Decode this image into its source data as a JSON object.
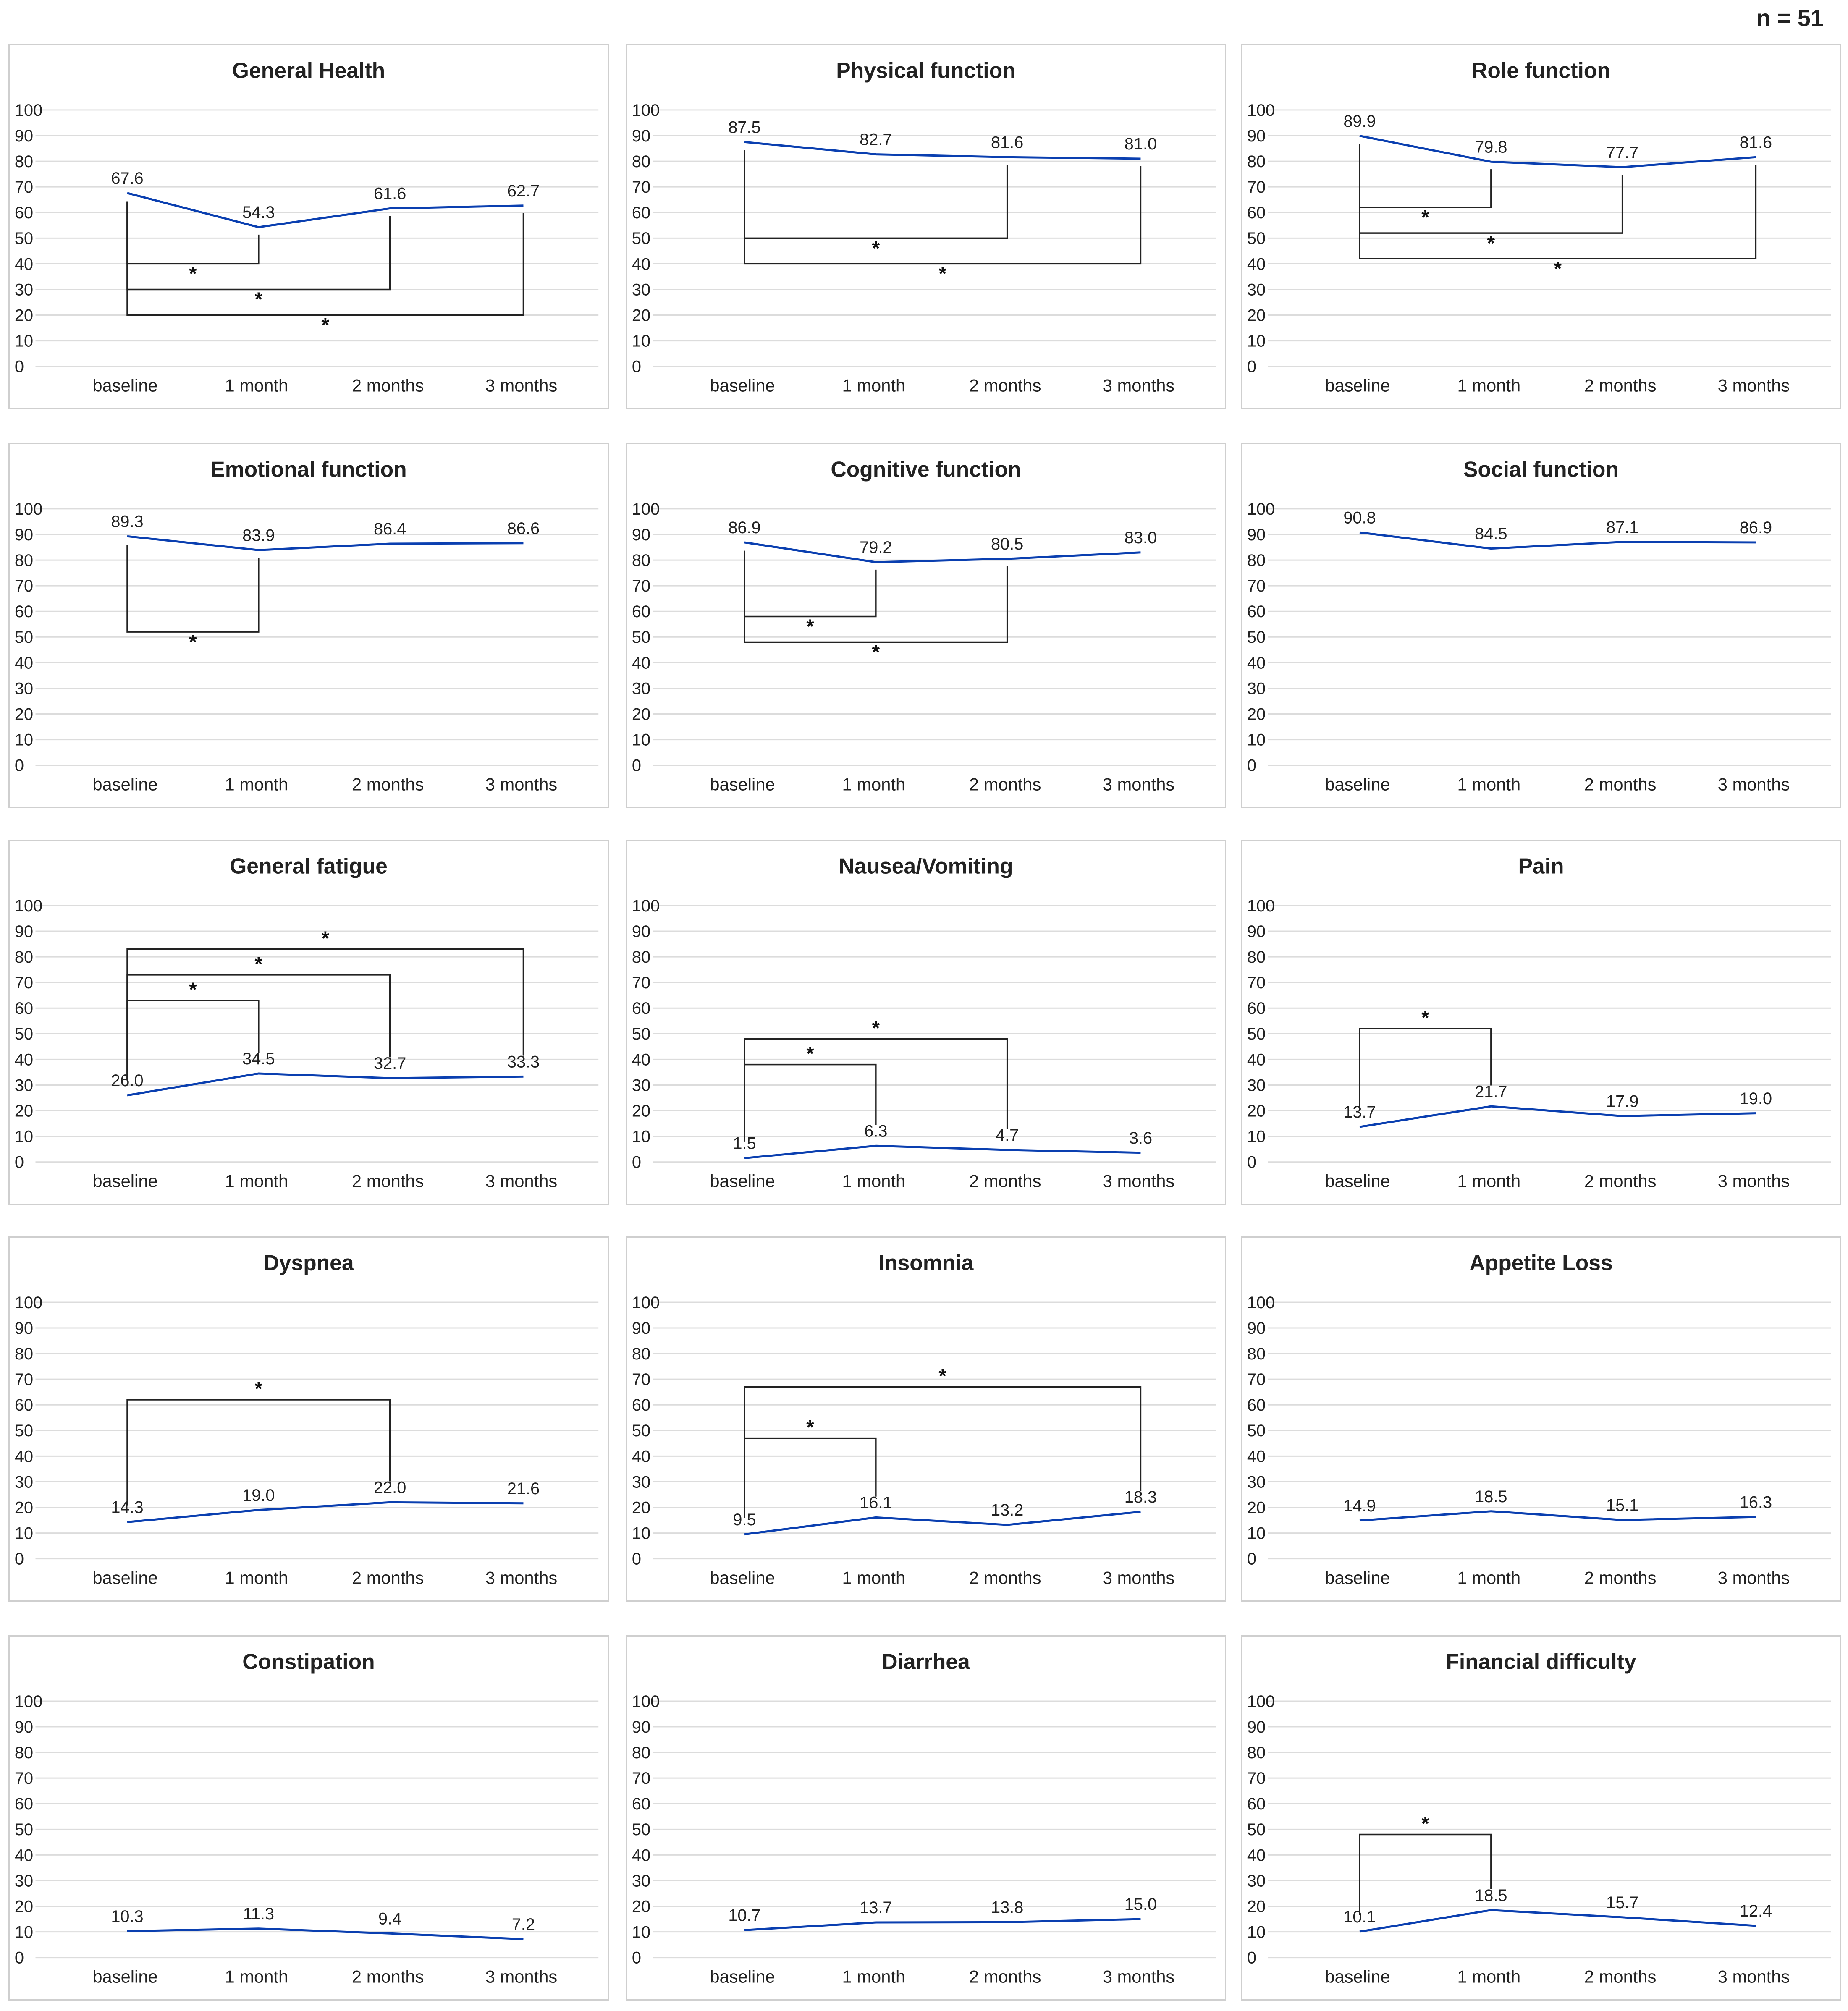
{
  "header": {
    "n_label": "n = 51"
  },
  "colors": {
    "series": "#0a3fb0",
    "bracket": "#222222",
    "grid": "#dcdcdc",
    "border": "#cfcfcf"
  },
  "chart_data": [
    {
      "type": "line",
      "title": "General Health",
      "categories": [
        "baseline",
        "1 month",
        "2 months",
        "3 months"
      ],
      "values": [
        67.6,
        54.3,
        61.6,
        62.7
      ],
      "labels": [
        "67.6",
        "54.3",
        "61.6",
        "62.7"
      ],
      "ylim": [
        0,
        100
      ],
      "yticks": [
        "0",
        "10",
        "20",
        "30",
        "40",
        "50",
        "60",
        "70",
        "80",
        "90",
        "100"
      ],
      "brackets": [
        {
          "from": 0,
          "to": 1,
          "level": 40,
          "label": "*"
        },
        {
          "from": 0,
          "to": 2,
          "level": 30,
          "label": "*"
        },
        {
          "from": 0,
          "to": 3,
          "level": 20,
          "label": "*"
        }
      ]
    },
    {
      "type": "line",
      "title": "Physical function",
      "categories": [
        "baseline",
        "1 month",
        "2 months",
        "3 months"
      ],
      "values": [
        87.5,
        82.7,
        81.6,
        81.0
      ],
      "labels": [
        "87.5",
        "82.7",
        "81.6",
        "81.0"
      ],
      "ylim": [
        0,
        100
      ],
      "yticks": [
        "0",
        "10",
        "20",
        "30",
        "40",
        "50",
        "60",
        "70",
        "80",
        "90",
        "100"
      ],
      "brackets": [
        {
          "from": 0,
          "to": 2,
          "level": 50,
          "label": "*"
        },
        {
          "from": 0,
          "to": 3,
          "level": 40,
          "label": "*"
        }
      ]
    },
    {
      "type": "line",
      "title": "Role function",
      "categories": [
        "baseline",
        "1 month",
        "2 months",
        "3 months"
      ],
      "values": [
        89.9,
        79.8,
        77.7,
        81.6
      ],
      "labels": [
        "89.9",
        "79.8",
        "77.7",
        "81.6"
      ],
      "ylim": [
        0,
        100
      ],
      "yticks": [
        "0",
        "10",
        "20",
        "30",
        "40",
        "50",
        "60",
        "70",
        "80",
        "90",
        "100"
      ],
      "brackets": [
        {
          "from": 0,
          "to": 1,
          "level": 62,
          "label": "*"
        },
        {
          "from": 0,
          "to": 2,
          "level": 52,
          "label": "*"
        },
        {
          "from": 0,
          "to": 3,
          "level": 42,
          "label": "*"
        }
      ]
    },
    {
      "type": "line",
      "title": "Emotional function",
      "categories": [
        "baseline",
        "1 month",
        "2 months",
        "3 months"
      ],
      "values": [
        89.3,
        83.9,
        86.4,
        86.6
      ],
      "labels": [
        "89.3",
        "83.9",
        "86.4",
        "86.6"
      ],
      "ylim": [
        0,
        100
      ],
      "yticks": [
        "0",
        "10",
        "20",
        "30",
        "40",
        "50",
        "60",
        "70",
        "80",
        "90",
        "100"
      ],
      "brackets": [
        {
          "from": 0,
          "to": 1,
          "level": 52,
          "label": "*"
        }
      ]
    },
    {
      "type": "line",
      "title": "Cognitive function",
      "categories": [
        "baseline",
        "1 month",
        "2 months",
        "3 months"
      ],
      "values": [
        86.9,
        79.2,
        80.5,
        83.0
      ],
      "labels": [
        "86.9",
        "79.2",
        "80.5",
        "83.0"
      ],
      "ylim": [
        0,
        100
      ],
      "yticks": [
        "0",
        "10",
        "20",
        "30",
        "40",
        "50",
        "60",
        "70",
        "80",
        "90",
        "100"
      ],
      "brackets": [
        {
          "from": 0,
          "to": 1,
          "level": 58,
          "label": "*"
        },
        {
          "from": 0,
          "to": 2,
          "level": 48,
          "label": "*"
        }
      ]
    },
    {
      "type": "line",
      "title": "Social function",
      "categories": [
        "baseline",
        "1 month",
        "2 months",
        "3 months"
      ],
      "values": [
        90.8,
        84.5,
        87.1,
        86.9
      ],
      "labels": [
        "90.8",
        "84.5",
        "87.1",
        "86.9"
      ],
      "ylim": [
        0,
        100
      ],
      "yticks": [
        "0",
        "10",
        "20",
        "30",
        "40",
        "50",
        "60",
        "70",
        "80",
        "90",
        "100"
      ],
      "brackets": []
    },
    {
      "type": "line",
      "title": "General fatigue",
      "categories": [
        "baseline",
        "1 month",
        "2 months",
        "3 months"
      ],
      "values": [
        26.0,
        34.5,
        32.7,
        33.3
      ],
      "labels": [
        "26.0",
        "34.5",
        "32.7",
        "33.3"
      ],
      "ylim": [
        0,
        100
      ],
      "yticks": [
        "0",
        "10",
        "20",
        "30",
        "40",
        "50",
        "60",
        "70",
        "80",
        "90",
        "100"
      ],
      "brackets": [
        {
          "from": 0,
          "to": 1,
          "level": 63,
          "label": "*",
          "dir": "up"
        },
        {
          "from": 0,
          "to": 2,
          "level": 73,
          "label": "*",
          "dir": "up"
        },
        {
          "from": 0,
          "to": 3,
          "level": 83,
          "label": "*",
          "dir": "up"
        }
      ]
    },
    {
      "type": "line",
      "title": "Nausea/Vomiting",
      "categories": [
        "baseline",
        "1 month",
        "2 months",
        "3 months"
      ],
      "values": [
        1.5,
        6.3,
        4.7,
        3.6
      ],
      "labels": [
        "1.5",
        "6.3",
        "4.7",
        "3.6"
      ],
      "ylim": [
        0,
        100
      ],
      "yticks": [
        "0",
        "10",
        "20",
        "30",
        "40",
        "50",
        "60",
        "70",
        "80",
        "90",
        "100"
      ],
      "brackets": [
        {
          "from": 0,
          "to": 1,
          "level": 38,
          "label": "*",
          "dir": "up"
        },
        {
          "from": 0,
          "to": 2,
          "level": 48,
          "label": "*",
          "dir": "up"
        }
      ]
    },
    {
      "type": "line",
      "title": "Pain",
      "categories": [
        "baseline",
        "1 month",
        "2 months",
        "3 months"
      ],
      "values": [
        13.7,
        21.7,
        17.9,
        19.0
      ],
      "labels": [
        "13.7",
        "21.7",
        "17.9",
        "19.0"
      ],
      "ylim": [
        0,
        100
      ],
      "yticks": [
        "0",
        "10",
        "20",
        "30",
        "40",
        "50",
        "60",
        "70",
        "80",
        "90",
        "100"
      ],
      "brackets": [
        {
          "from": 0,
          "to": 1,
          "level": 52,
          "label": "*",
          "dir": "up"
        }
      ]
    },
    {
      "type": "line",
      "title": "Dyspnea",
      "categories": [
        "baseline",
        "1 month",
        "2 months",
        "3 months"
      ],
      "values": [
        14.3,
        19.0,
        22.0,
        21.6
      ],
      "labels": [
        "14.3",
        "19.0",
        "22.0",
        "21.6"
      ],
      "ylim": [
        0,
        100
      ],
      "yticks": [
        "0",
        "10",
        "20",
        "30",
        "40",
        "50",
        "60",
        "70",
        "80",
        "90",
        "100"
      ],
      "brackets": [
        {
          "from": 0,
          "to": 2,
          "level": 62,
          "label": "*",
          "dir": "up"
        }
      ]
    },
    {
      "type": "line",
      "title": "Insomnia",
      "categories": [
        "baseline",
        "1 month",
        "2 months",
        "3 months"
      ],
      "values": [
        9.5,
        16.1,
        13.2,
        18.3
      ],
      "labels": [
        "9.5",
        "16.1",
        "13.2",
        "18.3"
      ],
      "ylim": [
        0,
        100
      ],
      "yticks": [
        "0",
        "10",
        "20",
        "30",
        "40",
        "50",
        "60",
        "70",
        "80",
        "90",
        "100"
      ],
      "brackets": [
        {
          "from": 0,
          "to": 1,
          "level": 47,
          "label": "*",
          "dir": "up"
        },
        {
          "from": 0,
          "to": 3,
          "level": 67,
          "label": "*",
          "dir": "up"
        }
      ]
    },
    {
      "type": "line",
      "title": "Appetite Loss",
      "categories": [
        "baseline",
        "1 month",
        "2 months",
        "3 months"
      ],
      "values": [
        14.9,
        18.5,
        15.1,
        16.3
      ],
      "labels": [
        "14.9",
        "18.5",
        "15.1",
        "16.3"
      ],
      "ylim": [
        0,
        100
      ],
      "yticks": [
        "0",
        "10",
        "20",
        "30",
        "40",
        "50",
        "60",
        "70",
        "80",
        "90",
        "100"
      ],
      "brackets": []
    },
    {
      "type": "line",
      "title": "Constipation",
      "categories": [
        "baseline",
        "1 month",
        "2 months",
        "3 months"
      ],
      "values": [
        10.3,
        11.3,
        9.4,
        7.2
      ],
      "labels": [
        "10.3",
        "11.3",
        "9.4",
        "7.2"
      ],
      "ylim": [
        0,
        100
      ],
      "yticks": [
        "0",
        "10",
        "20",
        "30",
        "40",
        "50",
        "60",
        "70",
        "80",
        "90",
        "100"
      ],
      "brackets": []
    },
    {
      "type": "line",
      "title": "Diarrhea",
      "categories": [
        "baseline",
        "1 month",
        "2 months",
        "3 months"
      ],
      "values": [
        10.7,
        13.7,
        13.8,
        15.0
      ],
      "labels": [
        "10.7",
        "13.7",
        "13.8",
        "15.0"
      ],
      "ylim": [
        0,
        100
      ],
      "yticks": [
        "0",
        "10",
        "20",
        "30",
        "40",
        "50",
        "60",
        "70",
        "80",
        "90",
        "100"
      ],
      "brackets": []
    },
    {
      "type": "line",
      "title": "Financial difficulty",
      "categories": [
        "baseline",
        "1 month",
        "2 months",
        "3 months"
      ],
      "values": [
        10.1,
        18.5,
        15.7,
        12.4
      ],
      "labels": [
        "10.1",
        "18.5",
        "15.7",
        "12.4"
      ],
      "ylim": [
        0,
        100
      ],
      "yticks": [
        "0",
        "10",
        "20",
        "30",
        "40",
        "50",
        "60",
        "70",
        "80",
        "90",
        "100"
      ],
      "brackets": [
        {
          "from": 0,
          "to": 1,
          "level": 48,
          "label": "*",
          "dir": "up"
        }
      ]
    }
  ]
}
